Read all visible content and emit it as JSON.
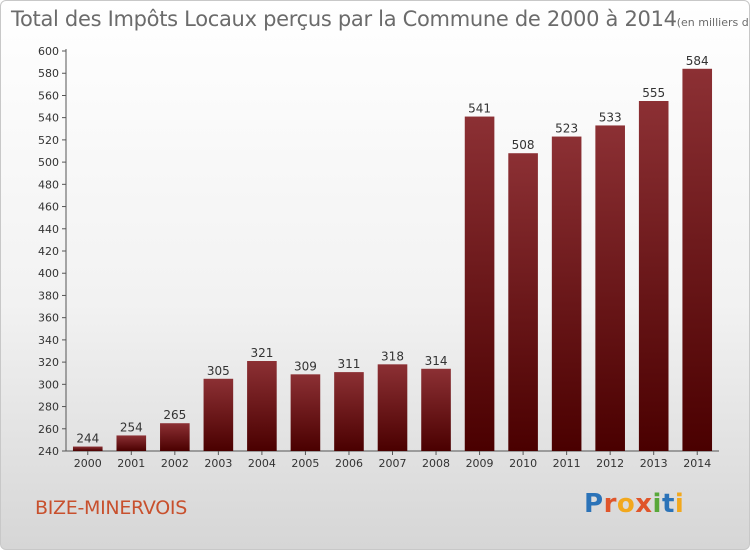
{
  "title": "Total des Impôts Locaux perçus par la Commune de 2000 à 2014",
  "title_unit": "(en milliers d'€)",
  "commune": "BIZE-MINERVOIS",
  "logo": {
    "text": "Proxiti",
    "letter_colors": [
      "#2b73b8",
      "#e0552a",
      "#f2a81d",
      "#e0552a",
      "#58a83a",
      "#2b73b8",
      "#f2a81d"
    ]
  },
  "colors": {
    "bar_top": "#8c3034",
    "bar_bottom": "#4a0000",
    "commune_text": "#c8502d"
  },
  "chart_data": {
    "type": "bar",
    "categories": [
      "2000",
      "2001",
      "2002",
      "2003",
      "2004",
      "2005",
      "2006",
      "2007",
      "2008",
      "2009",
      "2010",
      "2011",
      "2012",
      "2013",
      "2014"
    ],
    "values": [
      244,
      254,
      265,
      305,
      321,
      309,
      311,
      318,
      314,
      541,
      508,
      523,
      533,
      555,
      584
    ],
    "ylim": [
      240,
      600
    ],
    "yticks": [
      240,
      260,
      280,
      300,
      320,
      340,
      360,
      380,
      400,
      420,
      440,
      460,
      480,
      500,
      520,
      540,
      560,
      580,
      600
    ],
    "grid": false,
    "title": "Total des Impôts Locaux perçus par la Commune de 2000 à 2014",
    "xlabel": "",
    "ylabel": ""
  }
}
